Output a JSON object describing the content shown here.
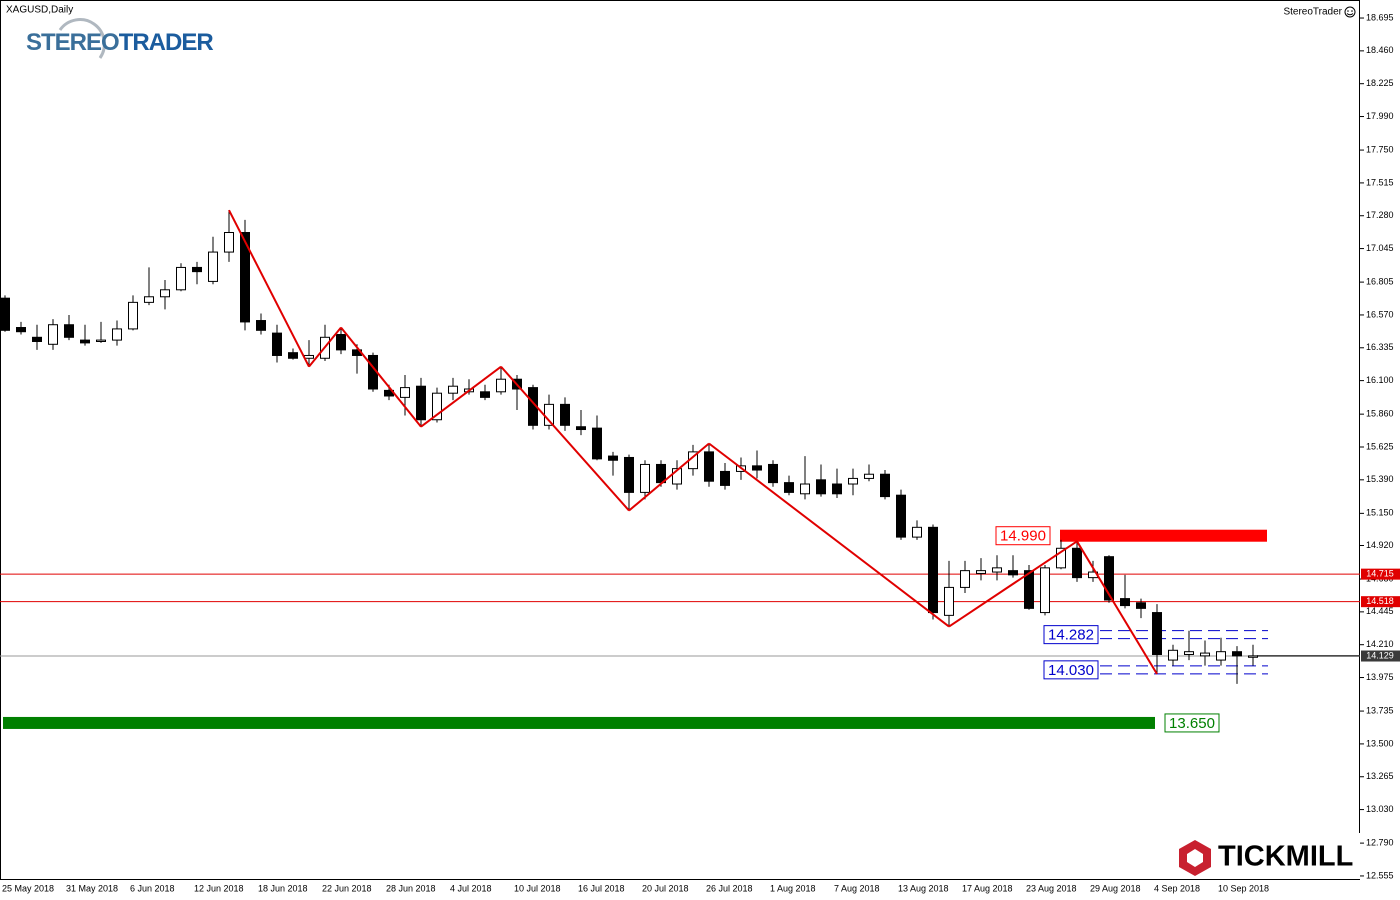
{
  "chart_data": {
    "type": "candlestick",
    "symbol_label": "XAGUSD,Daily",
    "indicator_label": "StereoTrader",
    "stereo_logo": [
      "STEREO",
      "TRADER"
    ],
    "broker_logo": "TICKMILL",
    "categories": [
      "25 May 2018",
      null,
      null,
      null,
      "31 May 2018",
      null,
      null,
      null,
      "6 Jun 2018",
      null,
      null,
      null,
      "12 Jun 2018",
      null,
      null,
      null,
      "18 Jun 2018",
      null,
      null,
      null,
      "22 Jun 2018",
      null,
      null,
      null,
      "28 Jun 2018",
      null,
      null,
      null,
      "4 Jul 2018",
      null,
      null,
      null,
      "10 Jul 2018",
      null,
      null,
      null,
      "16 Jul 2018",
      null,
      null,
      null,
      "20 Jul 2018",
      null,
      null,
      null,
      "26 Jul 2018",
      null,
      null,
      null,
      "1 Aug 2018",
      null,
      null,
      null,
      "7 Aug 2018",
      null,
      null,
      null,
      "13 Aug 2018",
      null,
      null,
      null,
      "17 Aug 2018",
      null,
      null,
      null,
      "23 Aug 2018",
      null,
      null,
      null,
      "29 Aug 2018",
      null,
      null,
      null,
      "4 Sep 2018",
      null,
      null,
      null,
      "10 Sep 2018",
      null,
      null
    ],
    "open": [
      16.69,
      16.48,
      16.41,
      16.36,
      16.5,
      16.39,
      16.38,
      16.39,
      16.47,
      16.66,
      16.7,
      16.75,
      16.91,
      16.81,
      17.02,
      17.16,
      16.53,
      16.44,
      16.3,
      16.26,
      16.26,
      16.43,
      16.32,
      16.28,
      16.03,
      15.98,
      16.06,
      15.82,
      16.01,
      16.02,
      16.02,
      16.02,
      16.11,
      16.05,
      15.78,
      15.93,
      15.77,
      15.76,
      15.56,
      15.55,
      15.3,
      15.5,
      15.36,
      15.47,
      15.59,
      15.45,
      15.45,
      15.49,
      15.5,
      15.37,
      15.29,
      15.39,
      15.36,
      15.36,
      15.4,
      15.43,
      15.28,
      14.98,
      15.05,
      14.42,
      14.62,
      14.72,
      14.73,
      14.74,
      14.74,
      14.44,
      14.76,
      14.9,
      14.69,
      14.84,
      14.54,
      14.51,
      14.44,
      14.1,
      14.14,
      14.13,
      14.1,
      14.16,
      14.12
    ],
    "high": [
      16.71,
      16.52,
      16.5,
      16.54,
      16.57,
      16.5,
      16.52,
      16.53,
      16.71,
      16.91,
      16.82,
      16.94,
      16.95,
      17.13,
      17.32,
      17.25,
      16.58,
      16.5,
      16.33,
      16.39,
      16.5,
      16.48,
      16.36,
      16.3,
      16.07,
      16.14,
      16.12,
      16.05,
      16.12,
      16.11,
      16.07,
      16.2,
      16.14,
      16.07,
      16.0,
      15.98,
      15.89,
      15.85,
      15.59,
      15.57,
      15.53,
      15.53,
      15.53,
      15.64,
      15.65,
      15.51,
      15.55,
      15.6,
      15.53,
      15.42,
      15.56,
      15.5,
      15.47,
      15.47,
      15.5,
      15.46,
      15.32,
      15.1,
      15.07,
      14.81,
      14.81,
      14.83,
      14.85,
      14.85,
      14.78,
      14.78,
      14.96,
      14.95,
      14.81,
      14.85,
      14.71,
      14.54,
      14.5,
      14.21,
      14.31,
      14.24,
      14.26,
      14.2,
      14.21
    ],
    "low": [
      16.45,
      16.43,
      16.32,
      16.32,
      16.39,
      16.35,
      16.37,
      16.35,
      16.46,
      16.64,
      16.61,
      16.74,
      16.79,
      16.79,
      16.95,
      16.46,
      16.43,
      16.23,
      16.25,
      16.2,
      16.24,
      16.29,
      16.15,
      16.02,
      15.96,
      15.85,
      15.77,
      15.8,
      15.96,
      16.0,
      15.96,
      16.0,
      15.89,
      15.75,
      15.75,
      15.74,
      15.71,
      15.53,
      15.42,
      15.17,
      15.25,
      15.34,
      15.32,
      15.42,
      15.34,
      15.32,
      15.39,
      15.4,
      15.34,
      15.28,
      15.25,
      15.27,
      15.26,
      15.28,
      15.38,
      15.25,
      14.96,
      14.96,
      14.39,
      14.34,
      14.58,
      14.67,
      14.67,
      14.69,
      14.46,
      14.42,
      14.75,
      14.66,
      14.66,
      14.51,
      14.47,
      14.4,
      14.0,
      14.06,
      14.1,
      14.06,
      14.06,
      13.93,
      14.06
    ],
    "close": [
      16.46,
      16.45,
      16.38,
      16.5,
      16.41,
      16.37,
      16.39,
      16.47,
      16.66,
      16.7,
      16.75,
      16.91,
      16.88,
      17.02,
      17.16,
      16.52,
      16.46,
      16.28,
      16.26,
      16.28,
      16.41,
      16.32,
      16.28,
      16.04,
      15.99,
      16.05,
      15.82,
      16.01,
      16.06,
      16.04,
      15.98,
      16.11,
      16.04,
      15.78,
      15.93,
      15.78,
      15.75,
      15.54,
      15.53,
      15.3,
      15.5,
      15.37,
      15.47,
      15.59,
      15.38,
      15.35,
      15.49,
      15.46,
      15.37,
      15.3,
      15.36,
      15.29,
      15.29,
      15.4,
      15.43,
      15.27,
      14.98,
      15.05,
      14.44,
      14.62,
      14.74,
      14.74,
      14.76,
      14.71,
      14.47,
      14.76,
      14.9,
      14.69,
      14.73,
      14.53,
      14.49,
      14.47,
      14.14,
      14.17,
      14.16,
      14.15,
      14.16,
      14.13,
      14.13
    ],
    "up_color": "#ffffff",
    "down_color": "#000000",
    "ylim": [
      12.526,
      18.824
    ],
    "yticks": [
      18.695,
      {
        "value": 18.46,
        "label": "18.460"
      },
      18.225,
      {
        "value": 17.99,
        "label": "17.990"
      },
      {
        "value": 17.75,
        "label": "17.750"
      },
      17.515,
      {
        "value": 17.28,
        "label": "17.280"
      },
      17.045,
      16.805,
      {
        "value": 16.57,
        "label": "16.570"
      },
      16.335,
      {
        "value": 16.1,
        "label": "16.100"
      },
      {
        "value": 15.86,
        "label": "15.860"
      },
      15.625,
      {
        "value": 15.39,
        "label": "15.390"
      },
      {
        "value": 15.15,
        "label": "15.150"
      },
      {
        "value": 14.92,
        "label": "14.920"
      },
      {
        "value": 14.68,
        "label": "14.680"
      },
      14.445,
      {
        "value": 14.21,
        "label": "14.210"
      },
      13.975,
      13.735,
      {
        "value": 13.5,
        "label": "13.500"
      },
      13.265,
      {
        "value": 13.03,
        "label": "13.030"
      },
      {
        "value": 12.79,
        "label": "12.790"
      },
      12.555
    ],
    "zigzag": {
      "color": "#e00000",
      "values": [
        null,
        null,
        null,
        null,
        null,
        null,
        null,
        null,
        null,
        null,
        null,
        null,
        null,
        null,
        17.32,
        null,
        null,
        null,
        null,
        16.2,
        null,
        16.48,
        null,
        null,
        null,
        null,
        15.77,
        null,
        null,
        null,
        null,
        16.2,
        null,
        null,
        null,
        null,
        null,
        null,
        null,
        15.17,
        null,
        null,
        null,
        null,
        15.65,
        null,
        null,
        null,
        null,
        null,
        null,
        null,
        null,
        null,
        null,
        null,
        null,
        null,
        null,
        14.34,
        null,
        null,
        null,
        null,
        null,
        null,
        null,
        14.95,
        null,
        null,
        null,
        null,
        14.0,
        null,
        null,
        null,
        null,
        null,
        null
      ]
    },
    "lines": [
      {
        "value": 14.715,
        "color": "#e00000",
        "box_color": "#e00000"
      },
      {
        "value": 14.518,
        "color": "#e00000",
        "box_color": "#e00000"
      },
      {
        "value": 14.129,
        "color": "#999999",
        "box_color": "#3a3a3a"
      }
    ],
    "zones": [
      {
        "value": 14.99,
        "label": "14.990",
        "color": "#ff0000"
      },
      {
        "value": 13.65,
        "label": "13.650",
        "color": "#008000"
      }
    ],
    "dashed_levels": [
      {
        "value": 14.282,
        "color": "#0000cc"
      },
      {
        "value": 14.03,
        "label": "14.030",
        "color": "#0000cc"
      }
    ]
  }
}
